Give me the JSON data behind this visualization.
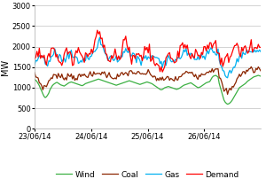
{
  "ylabel": "MW",
  "ylim": [
    0,
    3000
  ],
  "yticks": [
    0,
    500,
    1000,
    1500,
    2000,
    2500,
    3000
  ],
  "xtick_labels": [
    "23/06/14",
    "24/06/14",
    "25/06/14",
    "26/06/14"
  ],
  "xtick_positions": [
    0,
    1,
    2,
    3
  ],
  "xlim": [
    0,
    4.0
  ],
  "colors": {
    "Wind": "#3cb043",
    "Coal": "#8B2500",
    "Gas": "#00b0f0",
    "Demand": "#ff0000"
  },
  "background": "#ffffff",
  "grid_color": "#c0c0c0"
}
